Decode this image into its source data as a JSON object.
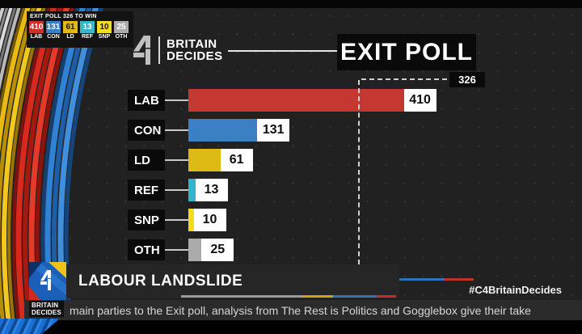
{
  "header": {
    "brand": {
      "line1": "BRITAIN",
      "line2": "DECIDES"
    },
    "title": "EXIT POLL"
  },
  "legend": {
    "title": "EXIT POLL 326 TO WIN",
    "items": [
      {
        "party": "LAB",
        "seats": "410",
        "color": "#C8322B",
        "text_color": "#FFFFFF"
      },
      {
        "party": "CON",
        "seats": "131",
        "color": "#3C7FC0",
        "text_color": "#FFFFFF"
      },
      {
        "party": "LD",
        "seats": "61",
        "color": "#E0B818",
        "text_color": "#151515"
      },
      {
        "party": "REF",
        "seats": "13",
        "color": "#38B7CB",
        "text_color": "#FFFFFF"
      },
      {
        "party": "SNP",
        "seats": "10",
        "color": "#F2DC25",
        "text_color": "#151515"
      },
      {
        "party": "OTH",
        "seats": "25",
        "color": "#ACACAC",
        "text_color": "#FFFFFF"
      }
    ]
  },
  "chart_data": {
    "type": "bar",
    "orientation": "horizontal",
    "title": "EXIT POLL",
    "categories": [
      "LAB",
      "CON",
      "LD",
      "REF",
      "SNP",
      "OTH"
    ],
    "values": [
      410,
      131,
      61,
      13,
      10,
      25
    ],
    "bar_colors": [
      "#C43831",
      "#3B7FC4",
      "#DDBB14",
      "#2FB6CC",
      "#F2DC1E",
      "#ABABAB"
    ],
    "value_labels": [
      "410",
      "131",
      "61",
      "13",
      "10",
      "25"
    ],
    "threshold": {
      "value": 326,
      "label": "326",
      "note": "326 TO WIN"
    },
    "xlim": [
      0,
      745
    ],
    "grid": "dotted background",
    "legend_position": "top-left"
  },
  "lower_third": {
    "headline": "LABOUR LANDSLIDE",
    "hashtag": "#C4BritainDecides"
  },
  "ticker": {
    "brand_line1": "BRITAIN",
    "brand_line2": "DECIDES",
    "text": "main parties to the Exit poll, analysis from The Rest is Politics and Gogglebox give their take"
  },
  "colors": {
    "background": "#212121",
    "panel_black": "#0A0A0A",
    "banner_grey": "#262626",
    "ticker_grey": "#2B2B2B",
    "dashed_line": "#D4D4D4",
    "step_line_grey": "#9A9A9A",
    "step_line_gold": "#D4A017",
    "step_line_blue": "#2E72B8",
    "step_line_red": "#C03028"
  }
}
